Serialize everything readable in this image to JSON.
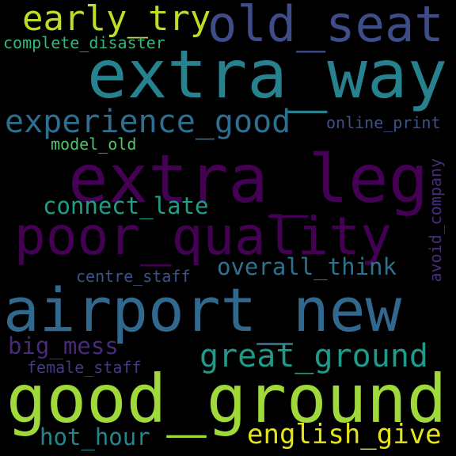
{
  "background": "#000000",
  "words": [
    {
      "text": "early_try",
      "color": "#bdde26"
    },
    {
      "text": "old_seat",
      "color": "#3e4c8a"
    },
    {
      "text": "complete_disaster",
      "color": "#35b779"
    },
    {
      "text": "extra_way",
      "color": "#26828e"
    },
    {
      "text": "experience_good",
      "color": "#2e6e8e"
    },
    {
      "text": "online_print",
      "color": "#3b528b"
    },
    {
      "text": "model_old",
      "color": "#52c569"
    },
    {
      "text": "extra_leg",
      "color": "#440154"
    },
    {
      "text": "avoid_company",
      "color": "#472d7b"
    },
    {
      "text": "connect_late",
      "color": "#1f9e89"
    },
    {
      "text": "poor_quality",
      "color": "#440154"
    },
    {
      "text": "overall_think",
      "color": "#2c728e"
    },
    {
      "text": "centre_staff",
      "color": "#3a548c"
    },
    {
      "text": "airport_new",
      "color": "#31688e"
    },
    {
      "text": "big_mess",
      "color": "#472a7a"
    },
    {
      "text": "great_ground",
      "color": "#1f9a8a"
    },
    {
      "text": "female_staff",
      "color": "#443983"
    },
    {
      "text": "good_ground",
      "color": "#9fda3a"
    },
    {
      "text": "hot_hour",
      "color": "#25848e"
    },
    {
      "text": "english_give",
      "color": "#e5e419"
    }
  ]
}
